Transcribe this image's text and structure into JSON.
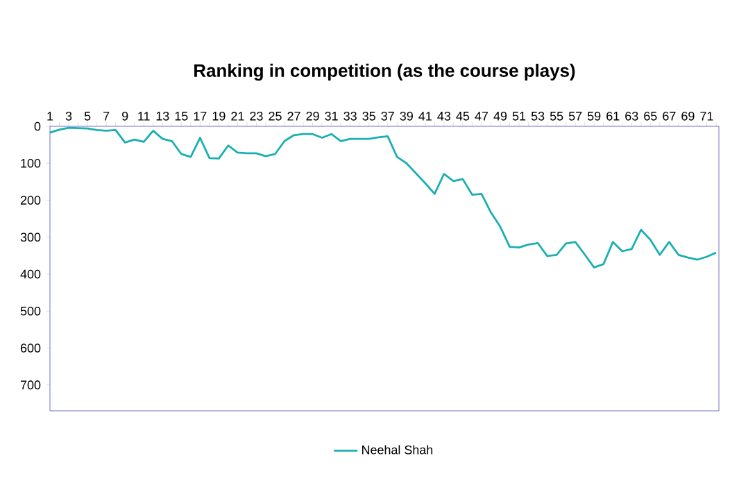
{
  "chart_data": {
    "type": "line",
    "title": "Ranking in competition (as the course plays)",
    "categories": [
      "1",
      null,
      "3",
      null,
      "5",
      null,
      "7",
      null,
      "9",
      null,
      "11",
      null,
      "13",
      null,
      "15",
      null,
      "17",
      null,
      "19",
      null,
      "21",
      null,
      "23",
      null,
      "25",
      null,
      "27",
      null,
      "29",
      null,
      "31",
      null,
      "33",
      null,
      "35",
      null,
      "37",
      null,
      "39",
      null,
      "41",
      null,
      "43",
      null,
      "45",
      null,
      "47",
      null,
      "49",
      null,
      "51",
      null,
      "53",
      null,
      "55",
      null,
      "57",
      null,
      "59",
      null,
      "61",
      null,
      "63",
      null,
      "65",
      null,
      "67",
      null,
      "69",
      null,
      "71",
      null
    ],
    "series": [
      {
        "name": "Neehal Shah",
        "color": "#1aafb0",
        "values": [
          17,
          9,
          4,
          5,
          6,
          10,
          12,
          10,
          44,
          36,
          42,
          12,
          34,
          40,
          75,
          83,
          31,
          86,
          87,
          52,
          71,
          73,
          73,
          81,
          75,
          40,
          24,
          21,
          21,
          31,
          21,
          40,
          34,
          34,
          34,
          30,
          27,
          83,
          100,
          127,
          154,
          183,
          129,
          148,
          143,
          185,
          183,
          233,
          272,
          326,
          328,
          320,
          316,
          351,
          348,
          317,
          313,
          347,
          382,
          373,
          313,
          338,
          332,
          280,
          307,
          348,
          313,
          348,
          355,
          361,
          353,
          342
        ]
      }
    ],
    "ylim": [
      770,
      0
    ],
    "yticks": [
      0,
      100,
      200,
      300,
      400,
      500,
      600,
      700
    ],
    "legend": "bottom"
  }
}
